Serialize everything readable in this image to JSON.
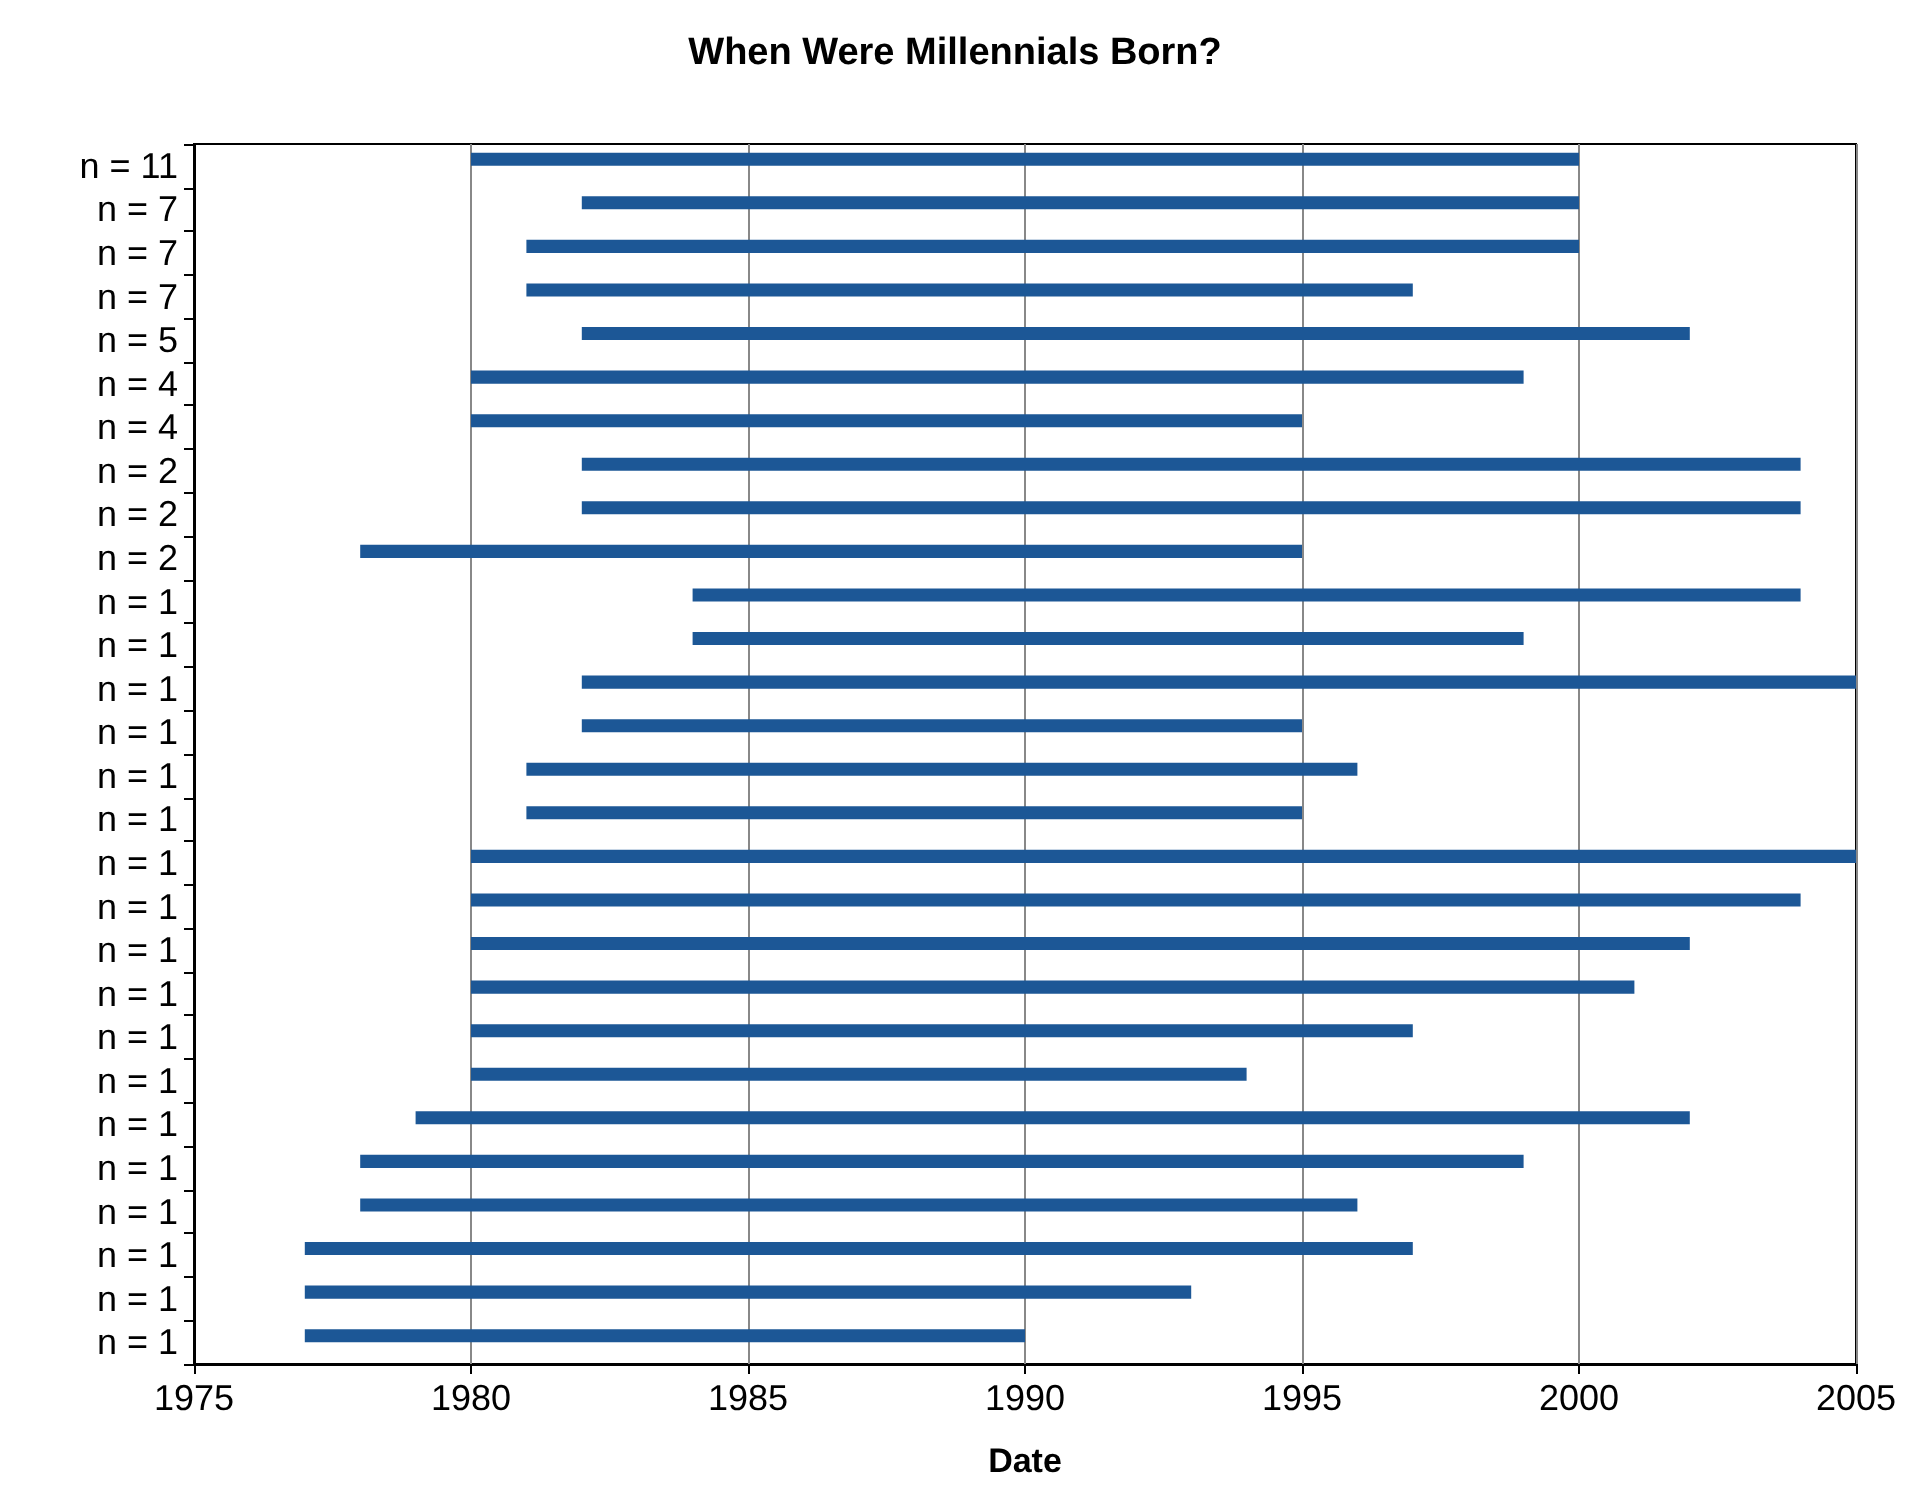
{
  "chart_data": {
    "type": "bar",
    "orientation": "horizontal",
    "title": "When Were Millennials Born?",
    "xlabel": "Date",
    "categories": [
      "n = 11",
      "n = 7",
      "n = 7",
      "n = 7",
      "n = 5",
      "n = 4",
      "n = 4",
      "n = 2",
      "n = 2",
      "n = 2",
      "n = 1",
      "n = 1",
      "n = 1",
      "n = 1",
      "n = 1",
      "n = 1",
      "n = 1",
      "n = 1",
      "n = 1",
      "n = 1",
      "n = 1",
      "n = 1",
      "n = 1",
      "n = 1",
      "n = 1",
      "n = 1",
      "n = 1",
      "n = 1"
    ],
    "base": [
      1980,
      1982,
      1981,
      1981,
      1982,
      1980,
      1980,
      1982,
      1982,
      1978,
      1984,
      1984,
      1982,
      1982,
      1981,
      1981,
      1980,
      1980,
      1980,
      1980,
      1980,
      1980,
      1979,
      1978,
      1978,
      1977,
      1977,
      1977
    ],
    "values": [
      20,
      18,
      19,
      16,
      20,
      19,
      15,
      22,
      22,
      17,
      20,
      15,
      23,
      13,
      15,
      14,
      25,
      24,
      22,
      21,
      17,
      14,
      23,
      21,
      18,
      20,
      16,
      13
    ],
    "color": "#1c5796",
    "xlim": [
      1975,
      2005
    ],
    "xticks": [
      1975,
      1980,
      1985,
      1990,
      1995,
      2000,
      2005
    ],
    "grid": "x"
  }
}
